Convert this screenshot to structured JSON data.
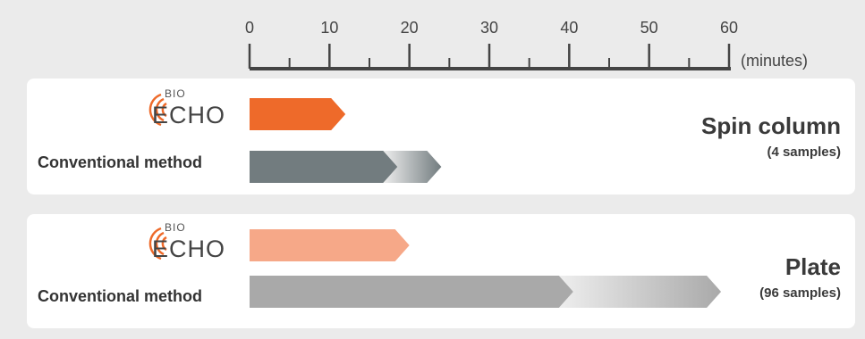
{
  "chart_data": {
    "type": "bar",
    "orientation": "horizontal",
    "x_axis": {
      "unit_label": "(minutes)",
      "range": [
        0,
        60
      ],
      "major_ticks": [
        0,
        10,
        20,
        30,
        40,
        50,
        60
      ],
      "major_tick_labels": [
        "0",
        "10",
        "20",
        "30",
        "40",
        "50",
        "60"
      ],
      "minor_tick_step": 5
    },
    "groups": [
      {
        "title": "Spin column",
        "subtitle": "(4 samples)",
        "rows": [
          {
            "label_logo": {
              "big": "ECHO",
              "small": "BIO"
            },
            "value": 12,
            "color": "#ee6a2a"
          },
          {
            "label": "Conventional method",
            "solid_value": 18.5,
            "fade_end": 24,
            "color": "#727c7f"
          }
        ]
      },
      {
        "title": "Plate",
        "subtitle": "(96 samples)",
        "rows": [
          {
            "label_logo": {
              "big": "ECHO",
              "small": "BIO"
            },
            "value": 20,
            "color": "#f6a888"
          },
          {
            "label": "Conventional method",
            "solid_value": 40.5,
            "fade_end": 59,
            "color": "#a9a9a9"
          }
        ]
      }
    ],
    "colors": {
      "logo_arc": "#ee6a2a",
      "axis": "#444444"
    }
  }
}
